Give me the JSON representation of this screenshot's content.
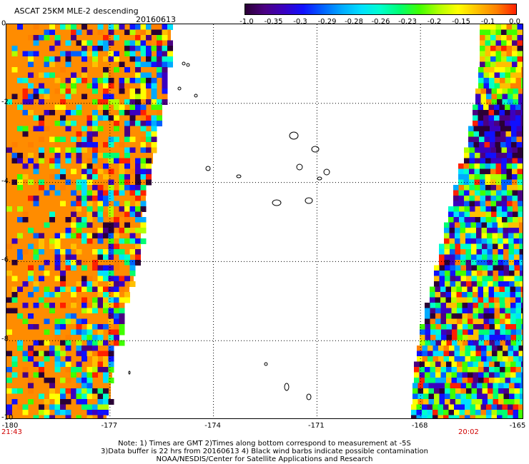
{
  "header": {
    "title": "ASCAT 25KM MLE-2 descending",
    "date": "20160613"
  },
  "colorbar": {
    "colors": [
      "#2a0035",
      "#4b0082",
      "#3a00c0",
      "#1010ff",
      "#0060ff",
      "#00aaff",
      "#00e0ff",
      "#00ffcc",
      "#00ff70",
      "#40ff00",
      "#b0ff00",
      "#ffff00",
      "#ffc000",
      "#ff8000",
      "#ff2000"
    ],
    "labels": [
      "-1.0",
      "-0.35",
      "-0.3",
      "-0.29",
      "-0.28",
      "-0.26",
      "-0.23",
      "-0.2",
      "-0.15",
      "-0.1",
      "0.0"
    ]
  },
  "map": {
    "lon_labels": [
      "-180",
      "-177",
      "-174",
      "-171",
      "-168",
      "-165"
    ],
    "lat_labels": [
      "0",
      "-2",
      "-4",
      "-6",
      "-8",
      "-10"
    ],
    "lon_range": [
      -180,
      -165
    ],
    "lat_range": [
      0,
      -10
    ],
    "grid": "dotted",
    "land_color": "#ff8c00"
  },
  "times": {
    "left": "21:43",
    "right": "20:02"
  },
  "notes": {
    "line1": "Note: 1) Times are GMT 2)Times along bottom correspond to measurement at -5S",
    "line2": "3)Data buffer is 22 hrs from 20160613 4) Black wind barbs indicate possible contamination",
    "line3": "NOAA/NESDIS/Center for Satellite Applications and Research"
  }
}
